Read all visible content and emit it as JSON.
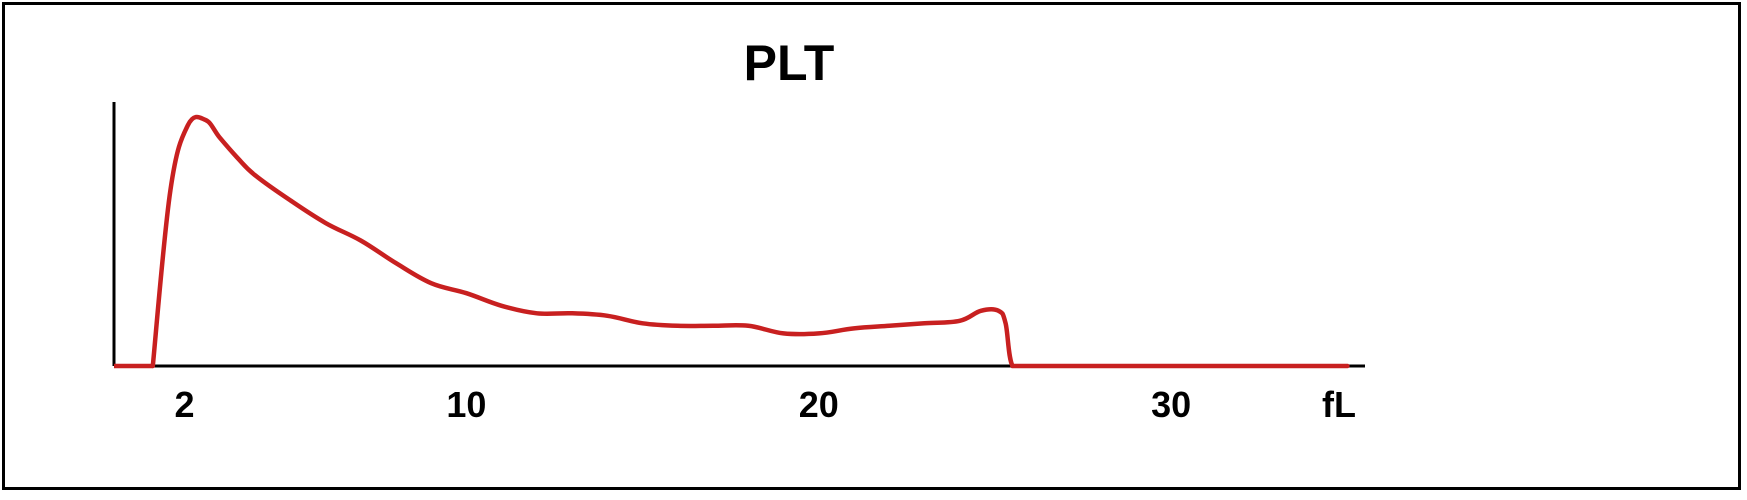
{
  "chart_data": {
    "type": "line",
    "title": "PLT",
    "xlabel": "",
    "ylabel": "",
    "x_unit": "fL",
    "xlim": [
      0,
      35.5
    ],
    "ylim": [
      0,
      1
    ],
    "grid": false,
    "x_ticks": [
      2,
      10,
      20,
      30
    ],
    "series": [
      {
        "color": "#c82020",
        "x": [
          1.1,
          1.6,
          2.1,
          2.6,
          3.0,
          3.5,
          4.0,
          5.0,
          6.0,
          7.0,
          8.0,
          9.0,
          10.0,
          11.0,
          12.0,
          13.0,
          14.0,
          15.0,
          16.0,
          17.0,
          18.0,
          19.0,
          20.0,
          21.0,
          22.0,
          23.0,
          24.0,
          24.6,
          25.1,
          25.3,
          25.5,
          26.0,
          30.0,
          35.0
        ],
        "y": [
          0.0,
          0.7,
          0.96,
          0.98,
          0.91,
          0.83,
          0.76,
          0.66,
          0.57,
          0.5,
          0.41,
          0.33,
          0.29,
          0.24,
          0.21,
          0.21,
          0.2,
          0.17,
          0.16,
          0.16,
          0.16,
          0.13,
          0.13,
          0.15,
          0.16,
          0.17,
          0.18,
          0.22,
          0.22,
          0.17,
          0.0,
          0.0,
          0.0,
          0.0
        ]
      }
    ]
  }
}
